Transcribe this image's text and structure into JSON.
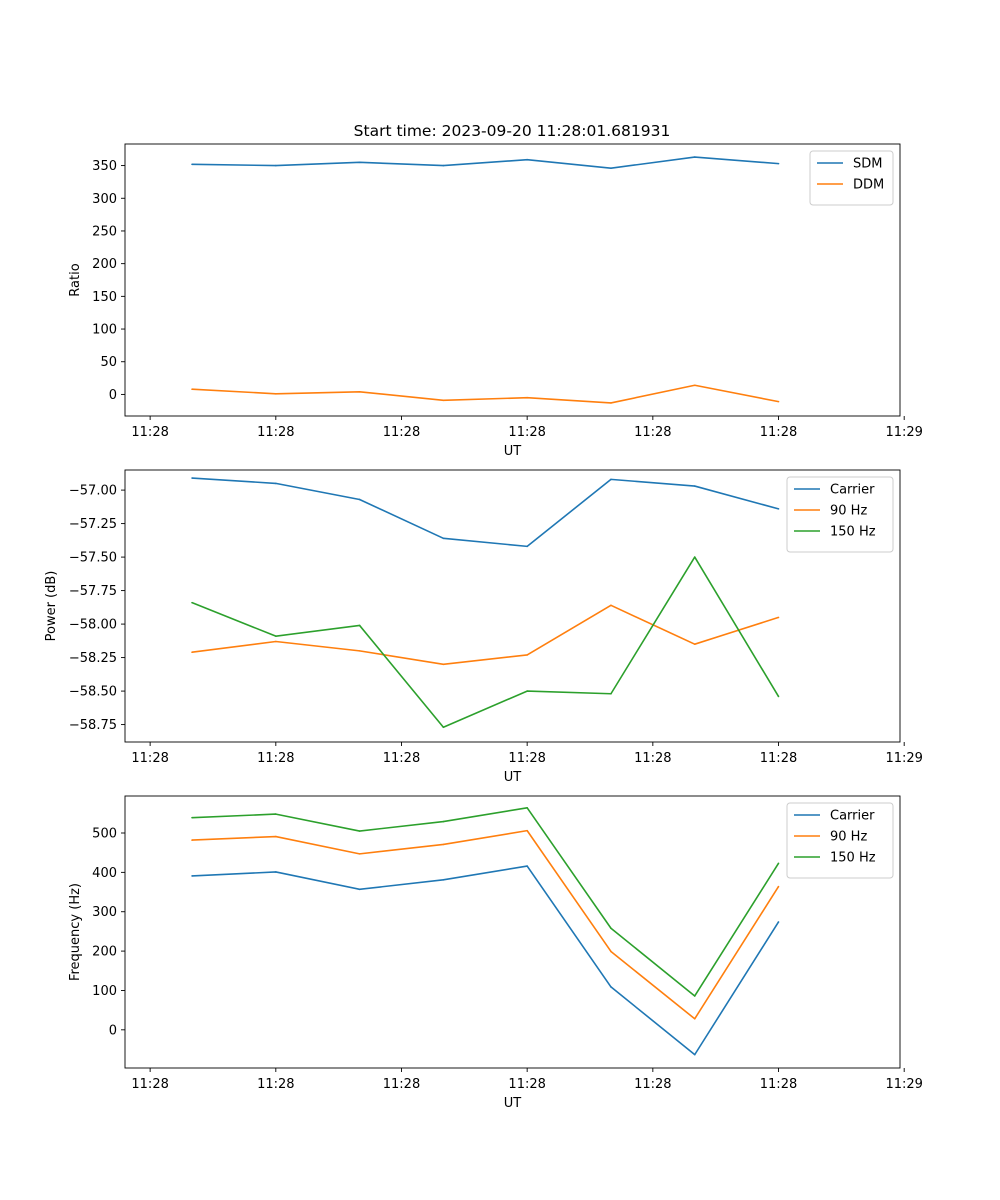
{
  "figure_title": "Start time: 2023-09-20 11:28:01.681931",
  "chart_data": [
    {
      "type": "line",
      "title": "Start time: 2023-09-20 11:28:01.681931",
      "xlabel": "UT",
      "ylabel": "Ratio",
      "x": [
        1,
        2,
        3,
        4,
        5,
        6,
        7,
        8
      ],
      "xlim": [
        0.2,
        9.45
      ],
      "xticks": [
        0.5,
        2.0,
        3.5,
        5.0,
        6.5,
        8.0,
        9.5
      ],
      "xtick_labels": [
        "11:28",
        "11:28",
        "11:28",
        "11:28",
        "11:28",
        "11:28",
        "11:29"
      ],
      "ylim": [
        -33,
        383
      ],
      "yticks": [
        0,
        50,
        100,
        150,
        200,
        250,
        300,
        350
      ],
      "ytick_labels": [
        "0",
        "50",
        "100",
        "150",
        "200",
        "250",
        "300",
        "350"
      ],
      "legend_position": "top-right",
      "series": [
        {
          "name": "SDM",
          "color": "#1f77b4",
          "values": [
            352,
            350,
            355,
            350,
            359,
            346,
            363,
            353
          ]
        },
        {
          "name": "DDM",
          "color": "#ff7f0e",
          "values": [
            8,
            1,
            4,
            -9,
            -5,
            -13,
            14,
            -11
          ]
        }
      ]
    },
    {
      "type": "line",
      "title": "",
      "xlabel": "UT",
      "ylabel": "Power (dB)",
      "x": [
        1,
        2,
        3,
        4,
        5,
        6,
        7,
        8
      ],
      "xlim": [
        0.2,
        9.45
      ],
      "xticks": [
        0.5,
        2.0,
        3.5,
        5.0,
        6.5,
        8.0,
        9.5
      ],
      "xtick_labels": [
        "11:28",
        "11:28",
        "11:28",
        "11:28",
        "11:28",
        "11:28",
        "11:29"
      ],
      "ylim": [
        -58.88,
        -56.85
      ],
      "yticks": [
        -57.0,
        -57.25,
        -57.5,
        -57.75,
        -58.0,
        -58.25,
        -58.5,
        -58.75
      ],
      "ytick_labels": [
        "−57.00",
        "−57.25",
        "−57.50",
        "−57.75",
        "−58.00",
        "−58.25",
        "−58.50",
        "−58.75"
      ],
      "legend_position": "top-right",
      "series": [
        {
          "name": "Carrier",
          "color": "#1f77b4",
          "values": [
            -56.91,
            -56.95,
            -57.07,
            -57.36,
            -57.42,
            -56.92,
            -56.97,
            -57.14
          ]
        },
        {
          "name": "90 Hz",
          "color": "#ff7f0e",
          "values": [
            -58.21,
            -58.13,
            -58.2,
            -58.3,
            -58.23,
            -57.86,
            -58.15,
            -57.95
          ]
        },
        {
          "name": "150 Hz",
          "color": "#2ca02c",
          "values": [
            -57.84,
            -58.09,
            -58.01,
            -58.77,
            -58.5,
            -58.52,
            -57.5,
            -58.54
          ]
        }
      ]
    },
    {
      "type": "line",
      "title": "",
      "xlabel": "UT",
      "ylabel": "Frequency (Hz)",
      "x": [
        1,
        2,
        3,
        4,
        5,
        6,
        7,
        8
      ],
      "xlim": [
        0.2,
        9.45
      ],
      "xticks": [
        0.5,
        2.0,
        3.5,
        5.0,
        6.5,
        8.0,
        9.5
      ],
      "xtick_labels": [
        "11:28",
        "11:28",
        "11:28",
        "11:28",
        "11:28",
        "11:28",
        "11:29"
      ],
      "ylim": [
        -97,
        594
      ],
      "yticks": [
        0,
        100,
        200,
        300,
        400,
        500
      ],
      "ytick_labels": [
        "0",
        "100",
        "200",
        "300",
        "400",
        "500"
      ],
      "legend_position": "top-right",
      "series": [
        {
          "name": "Carrier",
          "color": "#1f77b4",
          "values": [
            391,
            401,
            357,
            381,
            416,
            109,
            -63,
            274
          ]
        },
        {
          "name": "90 Hz",
          "color": "#ff7f0e",
          "values": [
            482,
            491,
            447,
            471,
            506,
            199,
            28,
            364
          ]
        },
        {
          "name": "150 Hz",
          "color": "#2ca02c",
          "values": [
            539,
            548,
            505,
            529,
            564,
            258,
            86,
            423
          ]
        }
      ]
    }
  ]
}
